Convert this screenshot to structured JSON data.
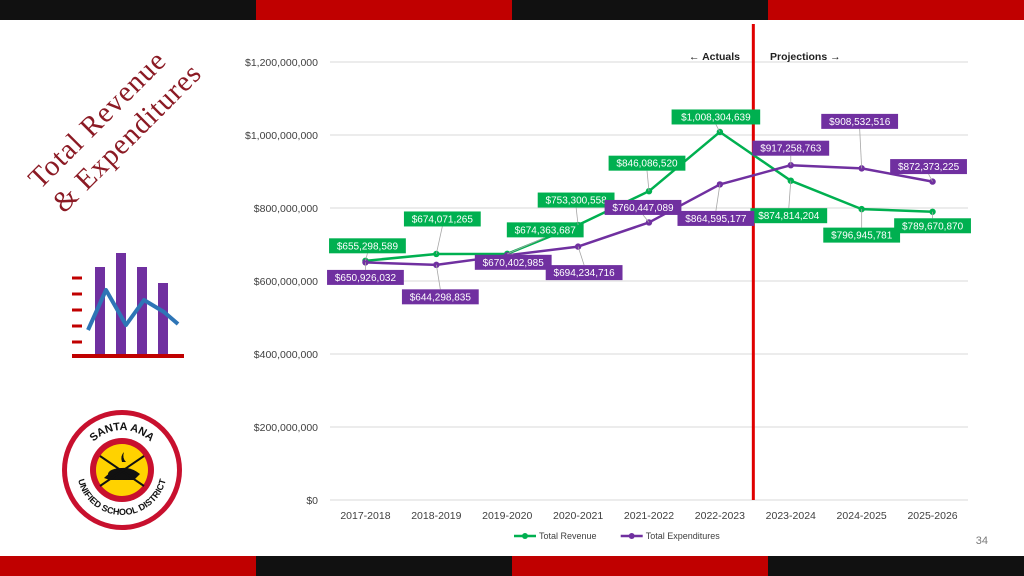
{
  "slide": {
    "title_line1": "Total Revenue",
    "title_line2": "& Expenditures",
    "page_number": "34",
    "band_colors": [
      "#111111",
      "#c00000",
      "#111111",
      "#c00000"
    ]
  },
  "logo": {
    "top_text": "SANTA ANA",
    "bottom_text": "UNIFIED SCHOOL DISTRICT",
    "icon": "lamp-of-learning-seal"
  },
  "chart_icon": {
    "icon": "bar-chart-trend-icon",
    "accent": "#c00000",
    "bar_color": "#7030a0",
    "line_color": "#2e75b6"
  },
  "phase_labels": {
    "actuals": "Actuals",
    "projections": "Projections"
  },
  "chart_data": {
    "type": "line",
    "categories": [
      "2017-2018",
      "2018-2019",
      "2019-2020",
      "2020-2021",
      "2021-2022",
      "2022-2023",
      "2023-2024",
      "2024-2025",
      "2025-2026"
    ],
    "ylim": [
      0,
      1200000000
    ],
    "yticks": [
      0,
      200000000,
      400000000,
      600000000,
      800000000,
      1000000000,
      1200000000
    ],
    "ytick_labels": [
      "$0",
      "$200,000,000",
      "$400,000,000",
      "$600,000,000",
      "$800,000,000",
      "$1,000,000,000",
      "$1,200,000,000"
    ],
    "grid": true,
    "legend_position": "bottom",
    "divider_after_category": "2022-2023",
    "series": [
      {
        "name": "Total Revenue",
        "color": "#00b050",
        "values": [
          655298589,
          674071265,
          674363687,
          753300558,
          846086520,
          1008304639,
          874814204,
          796945781,
          789670870
        ],
        "labels": [
          "$655,298,589",
          "$674,071,265",
          "$674,363,687",
          "$753,300,558",
          "$846,086,520",
          "$1,008,304,639",
          "$874,814,204",
          "$796,945,781",
          "$789,670,870"
        ]
      },
      {
        "name": "Total Expenditures",
        "color": "#7030a0",
        "values": [
          650926032,
          644298835,
          670402985,
          694234716,
          760447089,
          864595177,
          917258763,
          908532516,
          872373225
        ],
        "labels": [
          "$650,926,032",
          "$644,298,835",
          "$670,402,985",
          "$694,234,716",
          "$760,447,089",
          "$864,595,177",
          "$917,258,763",
          "$908,532,516",
          "$872,373,225"
        ]
      }
    ]
  }
}
